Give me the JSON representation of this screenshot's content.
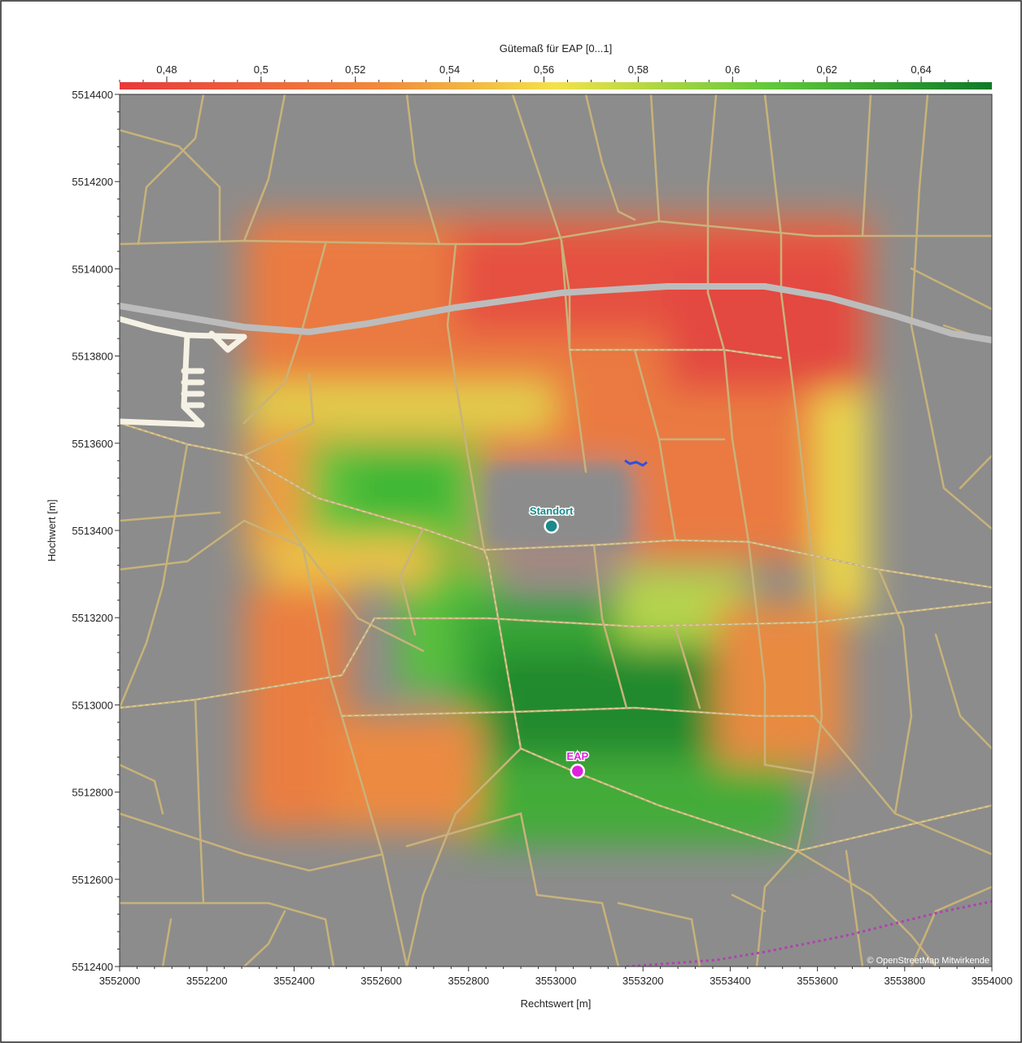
{
  "colorbar": {
    "title": "Gütemaß für EAP [0...1]",
    "ticks": [
      "0,48",
      "0,5",
      "0,52",
      "0,54",
      "0,56",
      "0,58",
      "0,6",
      "0,62",
      "0,64"
    ],
    "tick_values": [
      0.48,
      0.5,
      0.52,
      0.54,
      0.56,
      0.58,
      0.6,
      0.62,
      0.64
    ],
    "range": [
      0.47,
      0.655
    ],
    "colors": [
      "#e8393b",
      "#f28a3c",
      "#f3e24a",
      "#5fc83a",
      "#0f7a28"
    ]
  },
  "axes": {
    "x_title": "Rechtswert [m]",
    "y_title": "Hochwert [m]",
    "x_ticks": [
      "3552000",
      "3552200",
      "3552400",
      "3552600",
      "3552800",
      "3553000",
      "3553200",
      "3553400",
      "3553600",
      "3553800",
      "3554000"
    ],
    "x_values": [
      3552000,
      3552200,
      3552400,
      3552600,
      3552800,
      3553000,
      3553200,
      3553400,
      3553600,
      3553800,
      3554000
    ],
    "y_ticks": [
      "5514400",
      "5514200",
      "5514000",
      "5513800",
      "5513600",
      "5513400",
      "5513200",
      "5513000",
      "5512800",
      "5512600",
      "5512400"
    ],
    "y_values": [
      5514400,
      5514200,
      5514000,
      5513800,
      5513600,
      5513400,
      5513200,
      5513000,
      5512800,
      5512600,
      5512400
    ],
    "xlim": [
      3552000,
      3554000
    ],
    "ylim": [
      5512400,
      5514400
    ]
  },
  "markers": [
    {
      "label": "Standort",
      "x": 3552990,
      "y": 5513410,
      "color": "#1a8a8a"
    },
    {
      "label": "EAP",
      "x": 3553050,
      "y": 5512848,
      "color": "#e020e0"
    }
  ],
  "map": {
    "background": "#8c8c8c",
    "attribution": "© OpenStreetMap Mitwirkende",
    "legend_colors": {
      "road": "#c8b27a",
      "highway": "#bcbcbc",
      "rail": "#b040b0",
      "water": "#3050e0",
      "facility": "#f5f1e4"
    }
  }
}
